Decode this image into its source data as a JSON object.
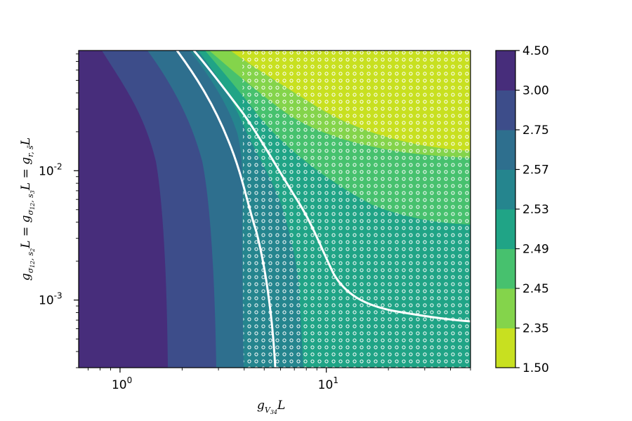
{
  "chart_data": {
    "type": "heatmap",
    "title": "",
    "xlabel_main": "g",
    "xlabel_sub": "V",
    "xlabel_subsub": "34",
    "xlabel_tail": "L",
    "ylabel_main": "g",
    "ylabel_sub1": "σ",
    "ylabel_sub1b": "12",
    "ylabel_sub2": "s",
    "ylabel_sub2b": "2",
    "ylabel_mid1": "L = g",
    "ylabel_sub3": "σ",
    "ylabel_sub3b": "12",
    "ylabel_sub4": "s",
    "ylabel_sub4b": "3",
    "ylabel_mid2": "L = g",
    "ylabel_sub5": "r, s̄",
    "ylabel_tail": "L",
    "x_scale": "log",
    "y_scale": "log",
    "xlim": [
      0.63,
      50
    ],
    "ylim": [
      0.0003,
      0.085
    ],
    "x_ticks": [
      {
        "value": 1,
        "label_base": "10",
        "label_exp": "0"
      },
      {
        "value": 10,
        "label_base": "10",
        "label_exp": "1"
      }
    ],
    "y_ticks": [
      {
        "value": 0.001,
        "label_base": "10",
        "label_exp": "-3"
      },
      {
        "value": 0.01,
        "label_base": "10",
        "label_exp": "-2"
      }
    ],
    "colorbar": {
      "levels": [
        "1.50",
        "2.35",
        "2.45",
        "2.49",
        "2.53",
        "2.57",
        "2.75",
        "3.00",
        "4.50"
      ],
      "colors": [
        "#c8e020",
        "#84d44b",
        "#47c16e",
        "#20a486",
        "#25858e",
        "#2e6f8e",
        "#3d4d8a",
        "#472d7b"
      ]
    },
    "region_colors": {
      "level_3_00": "#472d7b",
      "level_2_75": "#3d4d8a",
      "level_2_57": "#2e6f8e",
      "level_2_53": "#25858e",
      "level_2_49": "#20a486",
      "level_2_45": "#47c16e",
      "level_2_35": "#84d44b",
      "level_1_50": "#c8e020"
    },
    "hatch": "dots"
  }
}
